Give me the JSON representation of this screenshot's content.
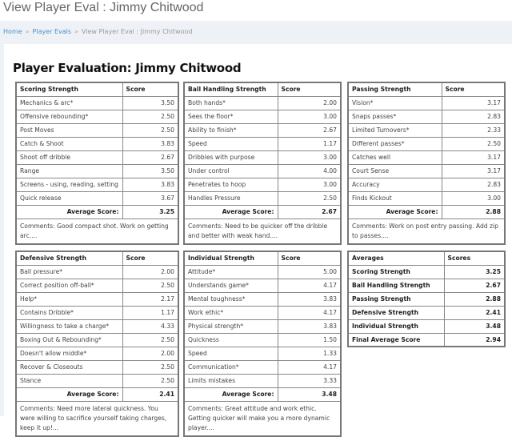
{
  "page_title": "View Player Eval : Jimmy Chitwood",
  "breadcrumb": [
    "Home",
    "Player Evals",
    "View Player Eval : Jimmy Chitwood"
  ],
  "heading": "Player Evaluation: Jimmy Chitwood",
  "score_header": "Score",
  "average_label": "Average Score:",
  "sections": [
    {
      "title": "Scoring Strength",
      "items": [
        [
          "Mechanics & arc*",
          "3.50"
        ],
        [
          "Offensive rebounding*",
          "2.50"
        ],
        [
          "Post Moves",
          "2.50"
        ],
        [
          "Catch & Shoot",
          "3.83"
        ],
        [
          "Shoot off dribble",
          "2.67"
        ],
        [
          "Range",
          "3.50"
        ],
        [
          "Screens - using, reading, setting",
          "3.83"
        ],
        [
          "Quick release",
          "3.67"
        ]
      ],
      "average": "3.25",
      "comments": "Comments: Good compact shot. Work on getting arc...."
    },
    {
      "title": "Ball Handling Strength",
      "items": [
        [
          "Both hands*",
          "2.00"
        ],
        [
          "Sees the floor*",
          "3.00"
        ],
        [
          "Ability to finish*",
          "2.67"
        ],
        [
          "Speed",
          "1.17"
        ],
        [
          "Dribbles with purpose",
          "3.00"
        ],
        [
          "Under control",
          "4.00"
        ],
        [
          "Penetrates to hoop",
          "3.00"
        ],
        [
          "Handles Pressure",
          "2.50"
        ]
      ],
      "average": "2.67",
      "comments": "Comments: Need to be quicker off the dribble and better with weak hand...."
    },
    {
      "title": "Passing Strength",
      "items": [
        [
          "Vision*",
          "3.17"
        ],
        [
          "Snaps passes*",
          "2.83"
        ],
        [
          "Limited Turnovers*",
          "2.33"
        ],
        [
          "Different passes*",
          "2.50"
        ],
        [
          "Catches well",
          "3.17"
        ],
        [
          "Court Sense",
          "3.17"
        ],
        [
          "Accuracy",
          "2.83"
        ],
        [
          "Finds Kickout",
          "3.00"
        ]
      ],
      "average": "2.88",
      "comments": "Comments: Work on post entry passing. Add zip to passes...."
    },
    {
      "title": "Defensive Strength",
      "items": [
        [
          "Ball pressure*",
          "2.00"
        ],
        [
          "Correct position off-ball*",
          "2.50"
        ],
        [
          "Help*",
          "2.17"
        ],
        [
          "Contains Dribble*",
          "1.17"
        ],
        [
          "Willingness to take a charge*",
          "4.33"
        ],
        [
          "Boxing Out & Rebounding*",
          "2.50"
        ],
        [
          "Doesn't allow middle*",
          "2.00"
        ],
        [
          "Recover & Closeouts",
          "2.50"
        ],
        [
          "Stance",
          "2.50"
        ]
      ],
      "average": "2.41",
      "comments": "Comments: Need more lateral quickness. You were willing to sacrifice yourself taking charges, keep it up!..."
    },
    {
      "title": "Individual Strength",
      "items": [
        [
          "Attitude*",
          "5.00"
        ],
        [
          "Understands game*",
          "4.17"
        ],
        [
          "Mental toughness*",
          "3.83"
        ],
        [
          "Work ethic*",
          "4.17"
        ],
        [
          "Physical strength*",
          "3.83"
        ],
        [
          "Quickness",
          "1.50"
        ],
        [
          "Speed",
          "1.33"
        ],
        [
          "Communication*",
          "4.17"
        ],
        [
          "Limits mistakes",
          "3.33"
        ]
      ],
      "average": "3.48",
      "comments": "Comments: Great attitude and work ethic. Getting quicker will make you a more dynamic player...."
    }
  ],
  "averages": {
    "title": "Averages",
    "score_header": "Scores",
    "rows": [
      [
        "Scoring Strength",
        "3.25"
      ],
      [
        "Ball Handling Strength",
        "2.67"
      ],
      [
        "Passing Strength",
        "2.88"
      ],
      [
        "Defensive Strength",
        "2.41"
      ],
      [
        "Individual Strength",
        "3.48"
      ],
      [
        "Final Average Score",
        "2.94"
      ]
    ]
  }
}
